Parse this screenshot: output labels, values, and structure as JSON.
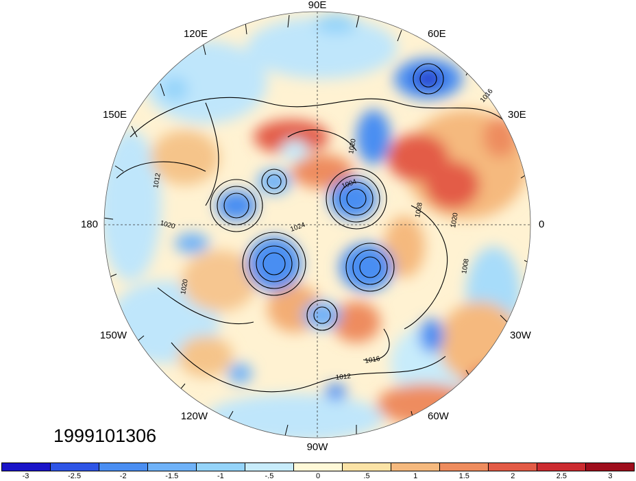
{
  "map": {
    "projection": "north-polar-stereographic",
    "longitude_labels": [
      "90E",
      "60E",
      "30E",
      "0",
      "30W",
      "60W",
      "90W",
      "120W",
      "150W",
      "180",
      "150E",
      "120E"
    ],
    "isobar_labels": [
      "1016",
      "1020",
      "1004",
      "1024",
      "1028",
      "1012",
      "1020",
      "1008",
      "1016",
      "1012",
      "1020",
      "1020"
    ]
  },
  "datestamp": "1999101306",
  "colorbar": {
    "ticks": [
      "-3",
      "-2.5",
      "-2",
      "-1.5",
      "-1",
      "-.5",
      "0",
      ".5",
      "1",
      "1.5",
      "2",
      "2.5",
      "3"
    ],
    "colors": [
      "#1a14c8",
      "#2e55e6",
      "#4a8ef2",
      "#6fb2f8",
      "#95d4fa",
      "#c8ecfb",
      "#fff9d8",
      "#fbe3a6",
      "#f5b97e",
      "#ee8c5e",
      "#e35b46",
      "#cc2b30",
      "#9e0d1c"
    ]
  }
}
